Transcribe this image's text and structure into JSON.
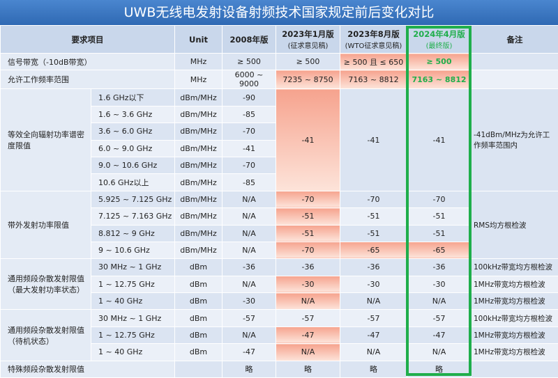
{
  "title": "UWB无线电发射设备射频技术国家规定前后变化对比",
  "header": {
    "item": "要求项目",
    "unit": "Unit",
    "v2008": "2008年版",
    "v2023_01": [
      "2023年1月版",
      "(征求意见稿)"
    ],
    "v2023_08": [
      "2023年8月版",
      "(WTO征求意见稿)"
    ],
    "v2024_04": [
      "2024年4月版",
      "(最终版)"
    ],
    "remark": "备注"
  },
  "basic": [
    [
      "信号带宽（-10dB带宽）",
      "MHz",
      "≥ 500",
      "≥ 500",
      "≥ 500 且 ≤ 650",
      "≥ 500"
    ],
    [
      "允许工作频率范围",
      "MHz",
      "6000 ~ 9000",
      "7235 ~ 8750",
      "7163 ~ 8812",
      "7163 ~ 8812"
    ]
  ],
  "groups": [
    {
      "label": "等效全向辐射功率谱密度限值",
      "items": [
        [
          "1.6 GHz以下",
          "dBm/MHz",
          "-90"
        ],
        [
          "1.6 ~ 3.6 GHz",
          "dBm/MHz",
          "-85"
        ],
        [
          "3.6 ~ 6.0 GHz",
          "dBm/MHz",
          "-70"
        ],
        [
          "6.0 ~ 9.0 GHz",
          "dBm/MHz",
          "-41"
        ],
        [
          "9.0 ~ 10.6 GHz",
          "dBm/MHz",
          "-70"
        ],
        [
          "10.6 GHz以上",
          "dBm/MHz",
          "-85"
        ]
      ],
      "v2023_01": "-41",
      "v2023_08": "-41",
      "v2024_04": "-41",
      "remark": "-41dBm/MHz为允许工作频率范围内"
    },
    {
      "label": "带外发射功率限值",
      "items": [
        [
          "5.925 ~ 7.125 GHz",
          "dBm/MHz",
          "N/A",
          "-70",
          "-70",
          "-70"
        ],
        [
          "7.125 ~ 7.163 GHz",
          "dBm/MHz",
          "N/A",
          "-51",
          "-51",
          "-51"
        ],
        [
          "8.812 ~ 9 GHz",
          "dBm/MHz",
          "N/A",
          "-51",
          "-51",
          "-51"
        ],
        [
          "9 ~ 10.6 GHz",
          "dBm/MHz",
          "N/A",
          "-70",
          "-65",
          "-65"
        ]
      ],
      "remark": "RMS均方根检波"
    },
    {
      "label": "通用频段杂散发射限值（最大发射功率状态）",
      "items": [
        [
          "30 MHz ~ 1 GHz",
          "dBm",
          "-36",
          "-36",
          "-36",
          "-36",
          "100kHz带宽均方根检波"
        ],
        [
          "1 ~ 12.75 GHz",
          "dBm",
          "N/A",
          "-30",
          "-30",
          "-30",
          "1MHz带宽均方根检波"
        ],
        [
          "1 ~ 40 GHz",
          "dBm",
          "-30",
          "N/A",
          "N/A",
          "N/A",
          "1MHz带宽均方根检波"
        ]
      ]
    },
    {
      "label": "通用频段杂散发射限值（待机状态）",
      "items": [
        [
          "30 MHz ~ 1 GHz",
          "dBm",
          "-57",
          "-57",
          "-57",
          "-57",
          "100kHz带宽均方根检波"
        ],
        [
          "1 ~ 12.75 GHz",
          "dBm",
          "N/A",
          "-47",
          "-47",
          "-47",
          "1MHz带宽均方根检波"
        ],
        [
          "1 ~ 40 GHz",
          "dBm",
          "-47",
          "N/A",
          "N/A",
          "N/A",
          "1MHz带宽均方根检波"
        ]
      ]
    }
  ],
  "special": [
    "特殊频段杂散发射限值",
    "略",
    "略",
    "略",
    "略"
  ]
}
